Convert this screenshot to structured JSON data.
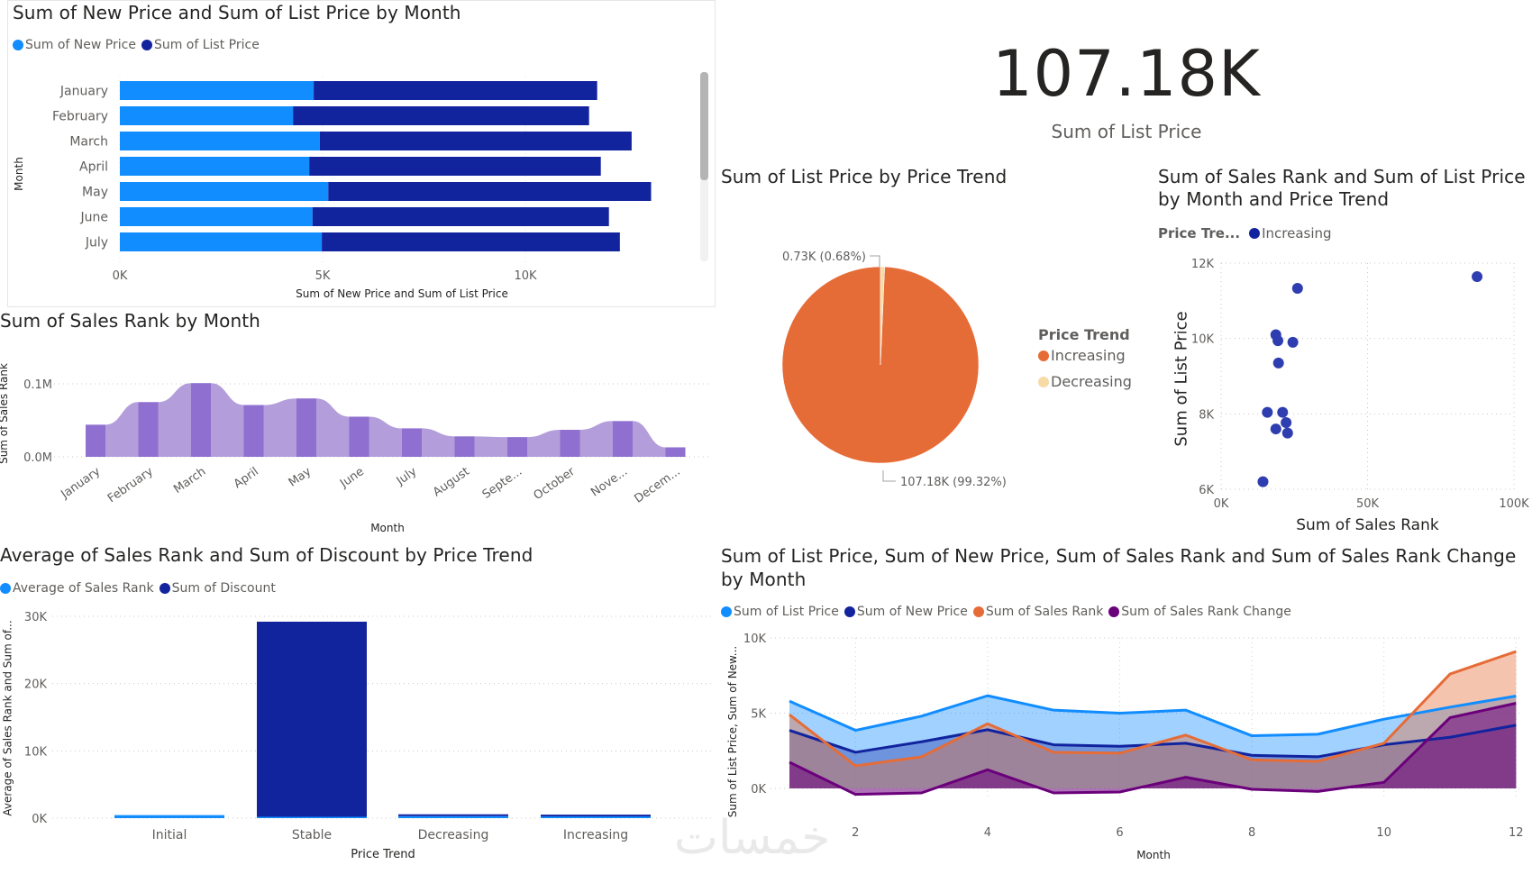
{
  "kpi": {
    "value": "107.18K",
    "label": "Sum of List Price"
  },
  "chart_data": [
    {
      "id": "new-list-by-month",
      "type": "bar",
      "orientation": "horizontal",
      "stacked": true,
      "title": "Sum of New Price and Sum of List Price by Month",
      "xlabel": "Sum of New Price and Sum of List Price",
      "ylabel": "Month",
      "categories": [
        "January",
        "February",
        "March",
        "April",
        "May",
        "June",
        "July"
      ],
      "series": [
        {
          "name": "Sum of New Price",
          "color": "#118DFF",
          "values": [
            4780,
            4270,
            4930,
            4670,
            5140,
            4750,
            4980
          ]
        },
        {
          "name": "Sum of List Price",
          "color": "#12239E",
          "values": [
            6990,
            7300,
            7690,
            7190,
            7960,
            7310,
            7350
          ]
        }
      ],
      "xticks": [
        "0K",
        "5K",
        "10K"
      ],
      "xlim": [
        0,
        14000
      ],
      "legend": "top-left",
      "scrollbar": true
    },
    {
      "id": "sales-rank-by-month",
      "type": "bar",
      "variant": "ribbon",
      "title": "Sum of Sales Rank by Month",
      "xlabel": "Month",
      "ylabel": "Sum of Sales Rank",
      "categories": [
        "January",
        "February",
        "March",
        "April",
        "May",
        "June",
        "July",
        "August",
        "Septe...",
        "October",
        "Nove...",
        "Decem..."
      ],
      "values": [
        44000,
        75000,
        101000,
        71000,
        80000,
        55000,
        39000,
        28000,
        27000,
        37000,
        49000,
        13000
      ],
      "color": "#8F6FCF",
      "ribbon_color": "#B39DDB",
      "yticks": [
        "0.0M",
        "0.1M"
      ],
      "ylim": [
        0,
        120000
      ]
    },
    {
      "id": "list-price-by-trend",
      "type": "pie",
      "title": "Sum of List Price by Price Trend",
      "legend_title": "Price Trend",
      "slices": [
        {
          "label": "Increasing",
          "value": 107180,
          "percent": 99.32,
          "data_label": "107.18K (99.32%)",
          "color": "#E66C37"
        },
        {
          "label": "Decreasing",
          "value": 730,
          "percent": 0.68,
          "data_label": "0.73K (0.68%)",
          "color": "#F7DBA7"
        }
      ],
      "legend": "right"
    },
    {
      "id": "rank-vs-list-scatter",
      "type": "scatter",
      "title": "Sum of Sales Rank and Sum of List Price by Month and Price Trend",
      "title_lines": [
        "Sum of Sales Rank and Sum of List Price",
        "by Month and Price Trend"
      ],
      "legend_title": "Price Tre...",
      "series": [
        {
          "name": "Increasing",
          "color": "#2E3DAF",
          "points": [
            {
              "x": 87400,
              "y": 11640
            },
            {
              "x": 26100,
              "y": 11330
            },
            {
              "x": 18700,
              "y": 10100
            },
            {
              "x": 19400,
              "y": 9940
            },
            {
              "x": 24500,
              "y": 9900
            },
            {
              "x": 19600,
              "y": 9350
            },
            {
              "x": 15800,
              "y": 8040
            },
            {
              "x": 21000,
              "y": 8040
            },
            {
              "x": 22200,
              "y": 7770
            },
            {
              "x": 18700,
              "y": 7600
            },
            {
              "x": 22700,
              "y": 7490
            },
            {
              "x": 14300,
              "y": 6200
            }
          ]
        }
      ],
      "xlabel": "Sum of Sales Rank",
      "ylabel": "Sum of List Price",
      "xticks": [
        "0K",
        "50K",
        "100K"
      ],
      "yticks": [
        "6K",
        "8K",
        "10K",
        "12K"
      ],
      "xlim": [
        0,
        100000
      ],
      "ylim": [
        6000,
        12000
      ],
      "grid": true
    },
    {
      "id": "rank-discount-by-trend",
      "type": "bar",
      "stacked": true,
      "title": "Average of Sales Rank and Sum of Discount by Price Trend",
      "xlabel": "Price Trend",
      "ylabel": "Average of Sales Rank and Sum of...",
      "categories": [
        "Initial",
        "Stable",
        "Decreasing",
        "Increasing"
      ],
      "series": [
        {
          "name": "Average of Sales Rank",
          "color": "#118DFF",
          "values": [
            450,
            200,
            300,
            250
          ]
        },
        {
          "name": "Sum of Discount",
          "color": "#12239E",
          "values": [
            0,
            29000,
            200,
            150
          ]
        }
      ],
      "yticks": [
        "0K",
        "10K",
        "20K",
        "30K"
      ],
      "ylim": [
        0,
        30000
      ],
      "legend": "top-left"
    },
    {
      "id": "multi-area-by-month",
      "type": "area",
      "title": "Sum of List Price, Sum of New Price, Sum of Sales Rank and Sum of Sales Rank Change by Month",
      "title_lines": [
        "Sum of List Price, Sum of New Price, Sum of Sales Rank and Sum of Sales Rank Change",
        "by Month"
      ],
      "xlabel": "Month",
      "ylabel": "Sum of List Price, Sum of New...",
      "x": [
        1,
        2,
        3,
        4,
        5,
        6,
        7,
        8,
        9,
        10,
        11,
        12
      ],
      "series": [
        {
          "name": "Sum of List Price",
          "color": "#118DFF",
          "values": [
            5800,
            3860,
            4800,
            6160,
            5200,
            5000,
            5200,
            3500,
            3600,
            4600,
            5400,
            6140
          ]
        },
        {
          "name": "Sum of New Price",
          "color": "#12239E",
          "values": [
            3860,
            2400,
            3100,
            3900,
            2900,
            2800,
            3000,
            2200,
            2100,
            2900,
            3400,
            4200
          ]
        },
        {
          "name": "Sum of Sales Rank",
          "color": "#E66C37",
          "values": [
            4900,
            1500,
            2100,
            4300,
            2400,
            2340,
            3540,
            1900,
            1800,
            3000,
            7600,
            9100
          ]
        },
        {
          "name": "Sum of Sales Rank Change",
          "color": "#6B007B",
          "values": [
            1740,
            -400,
            -300,
            1240,
            -300,
            -240,
            740,
            -60,
            -200,
            400,
            4700,
            5660
          ]
        }
      ],
      "xticks": [
        "2",
        "4",
        "6",
        "8",
        "10",
        "12"
      ],
      "yticks": [
        "0K",
        "5K",
        "10K"
      ],
      "ylim": [
        -1500,
        10000
      ],
      "legend": "top-left"
    }
  ]
}
